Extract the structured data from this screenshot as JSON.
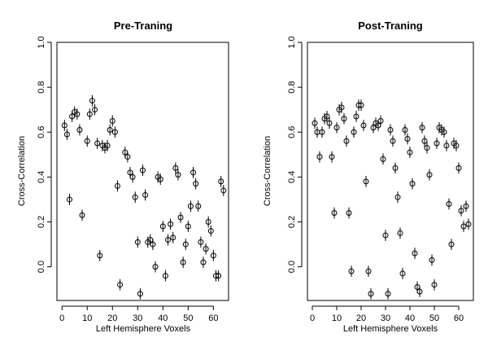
{
  "chart_data": [
    {
      "type": "scatter",
      "title": "Pre-Traning",
      "xlabel": "Left Hemisphere Voxels",
      "ylabel": "Cross-Correlation",
      "xlim": [
        -2,
        66
      ],
      "ylim": [
        -0.15,
        1.0
      ],
      "xticks": [
        "0",
        "10",
        "20",
        "30",
        "40",
        "50",
        "60"
      ],
      "yticks": [
        "0.0",
        "0.2",
        "0.4",
        "0.6",
        "0.8",
        "1.0"
      ],
      "xtick_values": [
        0,
        10,
        20,
        30,
        40,
        50,
        60
      ],
      "ytick_values": [
        0.0,
        0.2,
        0.4,
        0.6,
        0.8,
        1.0
      ],
      "error_half_width": 0.025,
      "grid": false,
      "x": [
        1,
        2,
        3,
        4,
        5,
        6,
        7,
        8,
        10,
        11,
        12,
        13,
        14,
        15,
        16,
        17,
        18,
        19,
        20,
        21,
        22,
        23,
        25,
        26,
        27,
        28,
        29,
        30,
        31,
        32,
        33,
        34,
        35,
        36,
        37,
        38,
        39,
        40,
        41,
        42,
        43,
        44,
        45,
        46,
        47,
        48,
        49,
        50,
        51,
        52,
        53,
        54,
        55,
        56,
        57,
        58,
        59,
        60,
        61,
        62,
        63,
        64
      ],
      "y": [
        0.63,
        0.59,
        0.3,
        0.67,
        0.69,
        0.68,
        0.61,
        0.23,
        0.56,
        0.68,
        0.74,
        0.7,
        0.55,
        0.05,
        0.54,
        0.53,
        0.54,
        0.61,
        0.65,
        0.6,
        0.36,
        -0.08,
        0.51,
        0.49,
        0.42,
        0.4,
        0.31,
        0.11,
        -0.12,
        0.43,
        0.32,
        0.11,
        0.12,
        0.1,
        0.0,
        0.4,
        0.39,
        0.18,
        -0.04,
        0.12,
        0.19,
        0.13,
        0.44,
        0.41,
        0.22,
        0.02,
        0.1,
        0.18,
        0.27,
        0.42,
        0.37,
        0.27,
        0.11,
        0.02,
        0.08,
        0.2,
        0.16,
        0.05,
        -0.04,
        -0.04,
        0.38,
        0.34
      ]
    },
    {
      "type": "scatter",
      "title": "Post-Traning",
      "xlabel": "Left Hemisphere Voxels",
      "ylabel": "Cross-Correlation",
      "xlim": [
        -2,
        66
      ],
      "ylim": [
        -0.15,
        1.0
      ],
      "xticks": [
        "0",
        "10",
        "20",
        "30",
        "40",
        "50",
        "60"
      ],
      "yticks": [
        "0.0",
        "0.2",
        "0.4",
        "0.6",
        "0.8",
        "1.0"
      ],
      "xtick_values": [
        0,
        10,
        20,
        30,
        40,
        50,
        60
      ],
      "ytick_values": [
        0.0,
        0.2,
        0.4,
        0.6,
        0.8,
        1.0
      ],
      "error_half_width": 0.025,
      "grid": false,
      "x": [
        1,
        2,
        3,
        4,
        5,
        6,
        7,
        8,
        9,
        10,
        11,
        12,
        13,
        14,
        15,
        16,
        17,
        18,
        19,
        20,
        21,
        22,
        23,
        24,
        25,
        26,
        27,
        28,
        29,
        30,
        31,
        32,
        33,
        34,
        35,
        36,
        37,
        38,
        39,
        40,
        41,
        42,
        43,
        44,
        45,
        46,
        47,
        48,
        49,
        50,
        51,
        52,
        53,
        54,
        55,
        56,
        57,
        58,
        59,
        60,
        61,
        62,
        63,
        64
      ],
      "y": [
        0.64,
        0.6,
        0.49,
        0.6,
        0.66,
        0.67,
        0.64,
        0.49,
        0.24,
        0.62,
        0.7,
        0.71,
        0.66,
        0.56,
        0.24,
        -0.02,
        0.6,
        0.67,
        0.72,
        0.72,
        0.63,
        0.38,
        -0.02,
        -0.12,
        0.62,
        0.64,
        0.63,
        0.65,
        0.48,
        0.14,
        -0.12,
        0.61,
        0.56,
        0.44,
        0.31,
        0.15,
        -0.03,
        0.61,
        0.57,
        0.51,
        0.37,
        0.06,
        -0.09,
        -0.11,
        0.62,
        0.56,
        0.53,
        0.41,
        0.03,
        -0.08,
        0.55,
        0.62,
        0.61,
        0.6,
        0.54,
        0.28,
        0.1,
        0.55,
        0.54,
        0.44,
        0.25,
        0.18,
        0.27,
        0.19
      ]
    }
  ]
}
